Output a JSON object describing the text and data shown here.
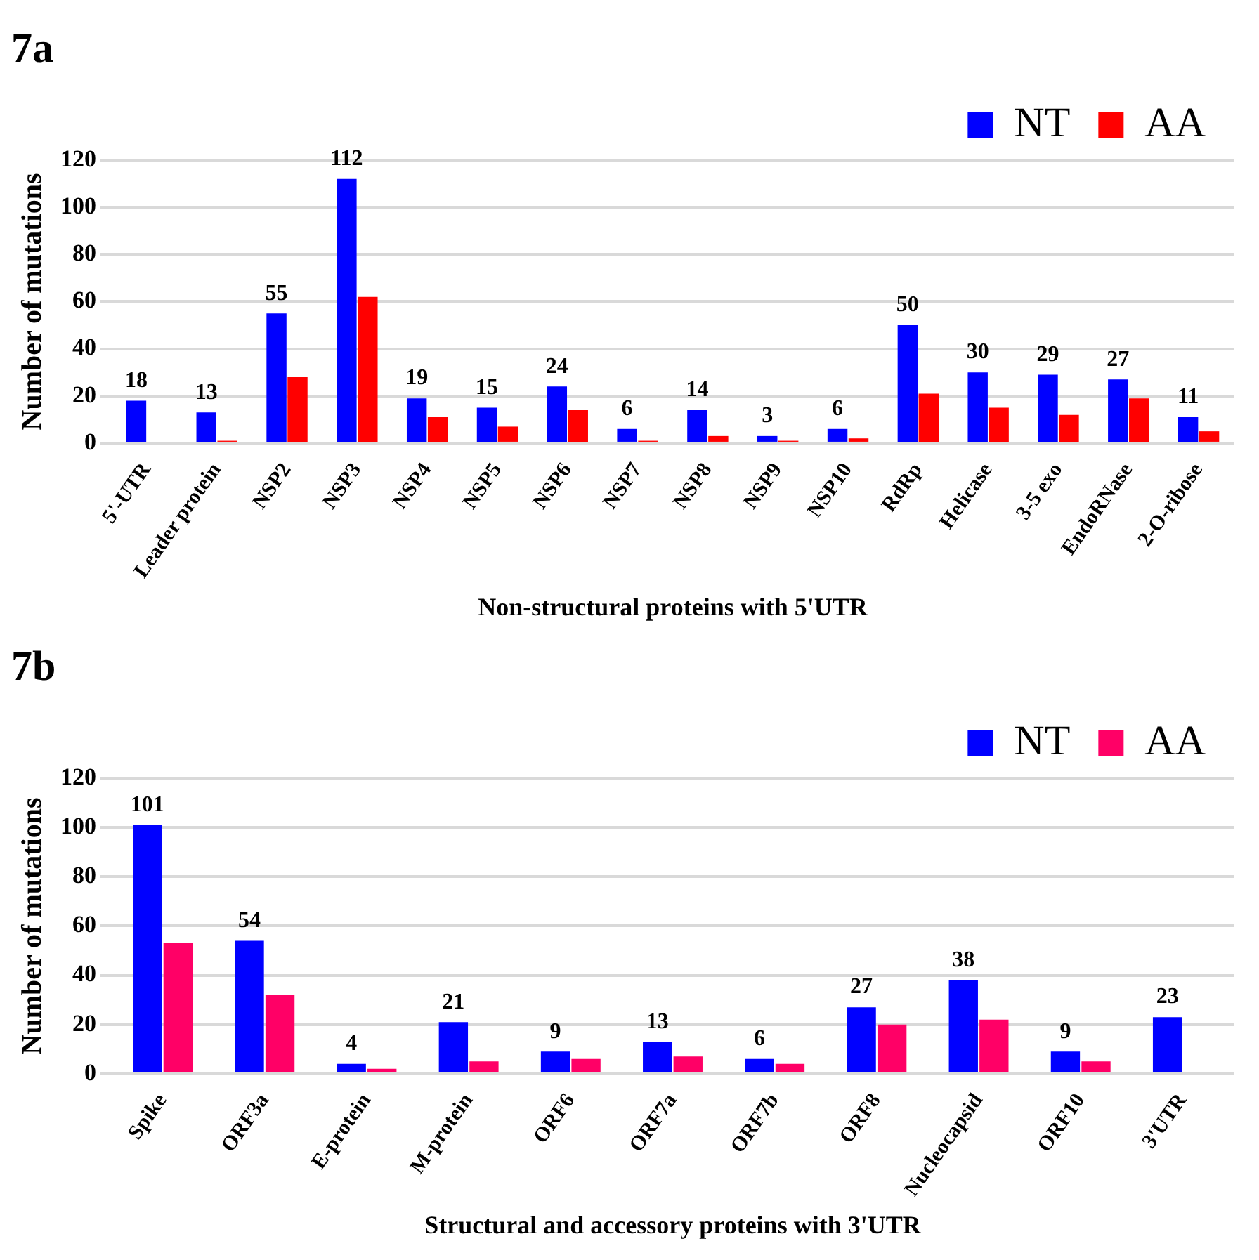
{
  "chart_data": [
    {
      "type": "bar",
      "title": "7a",
      "xlabel": "Non-structural proteins with 5'UTR",
      "ylabel": "Number of mutations",
      "categories": [
        "5'-UTR",
        "Leader protein",
        "NSP2",
        "NSP3",
        "NSP4",
        "NSP5",
        "NSP6",
        "NSP7",
        "NSP8",
        "NSP9",
        "NSP10",
        "RdRp",
        "Helicase",
        "3-5 exo",
        "EndoRNase",
        "2-O-ribose"
      ],
      "series": [
        {
          "name": "NT",
          "color": "#0000ff",
          "values": [
            18,
            13,
            55,
            112,
            19,
            15,
            24,
            6,
            14,
            3,
            6,
            50,
            30,
            29,
            27,
            11
          ],
          "value_labels": [
            "18",
            "13",
            "55",
            "112",
            "19",
            "15",
            "24",
            "6",
            "14",
            "3",
            "6",
            "50",
            "30",
            "29",
            "27",
            "11"
          ]
        },
        {
          "name": "AA",
          "color": "#ff0000",
          "values": [
            0,
            1,
            28,
            62,
            11,
            7,
            14,
            1,
            3,
            1,
            2,
            21,
            15,
            12,
            19,
            5
          ]
        }
      ],
      "ylim": [
        0,
        120
      ],
      "yticks": [
        0,
        20,
        40,
        60,
        80,
        100,
        120
      ],
      "grid": "y",
      "legend": "top right"
    },
    {
      "type": "bar",
      "title": "7b",
      "xlabel": "Structural and accessory proteins with 3'UTR",
      "ylabel": "Number of mutations",
      "categories": [
        "Spike",
        "ORF3a",
        "E-protein",
        "M-protein",
        "ORF6",
        "ORF7a",
        "ORF7b",
        "ORF8",
        "Nucleocapsid",
        "ORF10",
        "3'UTR"
      ],
      "series": [
        {
          "name": "NT",
          "color": "#0000ff",
          "values": [
            101,
            54,
            4,
            21,
            9,
            13,
            6,
            27,
            38,
            9,
            23
          ],
          "value_labels": [
            "101",
            "54",
            "4",
            "21",
            "9",
            "13",
            "6",
            "27",
            "38",
            "9",
            "23"
          ]
        },
        {
          "name": "AA",
          "color": "#ff0066",
          "values": [
            53,
            32,
            2,
            5,
            6,
            7,
            4,
            20,
            22,
            5,
            0
          ]
        }
      ],
      "ylim": [
        0,
        120
      ],
      "yticks": [
        0,
        20,
        40,
        60,
        80,
        100,
        120
      ],
      "grid": "y",
      "legend": "top right"
    }
  ]
}
